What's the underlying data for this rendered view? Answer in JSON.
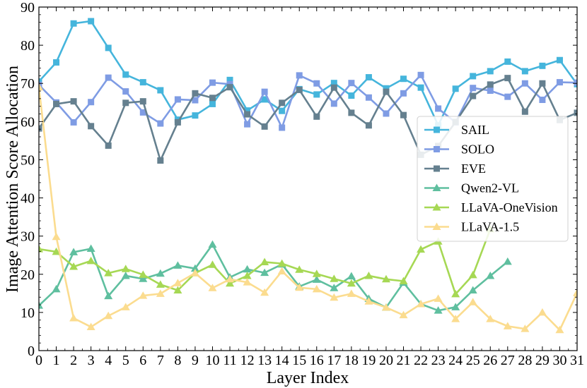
{
  "chart_data": {
    "type": "line",
    "xlabel": "Layer Index",
    "ylabel": "Image Attention Score Allocation",
    "xlim": [
      0,
      31
    ],
    "ylim": [
      0,
      90
    ],
    "xticks": [
      "0",
      "1",
      "2",
      "3",
      "4",
      "5",
      "6",
      "7",
      "8",
      "9",
      "10",
      "11",
      "12",
      "13",
      "14",
      "15",
      "16",
      "17",
      "18",
      "19",
      "20",
      "21",
      "22",
      "23",
      "24",
      "25",
      "26",
      "27",
      "28",
      "29",
      "30",
      "31"
    ],
    "yticks": [
      "0",
      "10",
      "20",
      "30",
      "40",
      "50",
      "60",
      "70",
      "80",
      "90"
    ],
    "legend_position": "center-right",
    "series": [
      {
        "name": "SAIL",
        "color": "#45b5dc",
        "marker": "square",
        "x": [
          0,
          1,
          2,
          3,
          4,
          5,
          6,
          7,
          8,
          9,
          10,
          11,
          12,
          13,
          14,
          15,
          16,
          17,
          18,
          19,
          20,
          21,
          22,
          23,
          24,
          25,
          26,
          27,
          28,
          29,
          30,
          31
        ],
        "y": [
          70.5,
          75.5,
          85.7,
          86.3,
          79.3,
          72.3,
          70.3,
          68.2,
          60.5,
          61.6,
          64.6,
          70.9,
          62.9,
          65.8,
          62.8,
          68.5,
          67.1,
          70.1,
          66.8,
          71.6,
          68.7,
          71.2,
          68.9,
          59.0,
          68.6,
          71.9,
          73.2,
          75.7,
          73.2,
          74.6,
          76.1,
          69.8
        ]
      },
      {
        "name": "SOLO",
        "color": "#7f9ce4",
        "marker": "square",
        "x": [
          0,
          1,
          2,
          3,
          4,
          5,
          6,
          7,
          8,
          9,
          10,
          11,
          12,
          13,
          14,
          15,
          16,
          17,
          18,
          19,
          20,
          21,
          22,
          23,
          24,
          25,
          26,
          27,
          28,
          29,
          30,
          31
        ],
        "y": [
          69.6,
          65.0,
          59.8,
          65.1,
          71.5,
          67.9,
          62.4,
          59.5,
          65.8,
          65.6,
          70.2,
          69.8,
          59.3,
          67.8,
          58.4,
          72.1,
          70.0,
          64.7,
          70.1,
          66.3,
          62.1,
          67.4,
          72.2,
          63.4,
          59.8,
          68.8,
          68.1,
          66.5,
          70.0,
          65.7,
          70.3,
          70.2
        ]
      },
      {
        "name": "EVE",
        "color": "#65808f",
        "marker": "square",
        "x": [
          0,
          1,
          2,
          3,
          4,
          5,
          6,
          7,
          8,
          9,
          10,
          11,
          12,
          13,
          14,
          15,
          16,
          17,
          18,
          19,
          20,
          21,
          22,
          23,
          24,
          25,
          26,
          27,
          28,
          29,
          30,
          31
        ],
        "y": [
          58.2,
          64.6,
          65.3,
          58.8,
          53.7,
          64.9,
          65.3,
          49.8,
          59.8,
          67.4,
          66.2,
          69.0,
          61.9,
          58.7,
          64.9,
          68.3,
          61.3,
          68.9,
          62.3,
          59.0,
          67.8,
          61.7,
          51.3,
          53.6,
          59.9,
          66.7,
          69.7,
          71.4,
          62.6,
          70.0,
          60.4,
          62.3
        ]
      },
      {
        "name": "Qwen2-VL",
        "color": "#5fbf9f",
        "marker": "triangle",
        "x": [
          0,
          1,
          2,
          3,
          4,
          5,
          6,
          7,
          8,
          9,
          10,
          11,
          12,
          13,
          14,
          15,
          16,
          17,
          18,
          19,
          20,
          21,
          22,
          23,
          24,
          25,
          26,
          27
        ],
        "y": [
          11.8,
          16.1,
          25.8,
          26.7,
          14.3,
          19.6,
          18.8,
          20.2,
          22.3,
          21.5,
          27.8,
          19.2,
          21.3,
          20.4,
          22.6,
          16.8,
          18.6,
          16.4,
          19.5,
          13.6,
          11.3,
          17.8,
          12.2,
          10.5,
          11.4,
          15.8,
          19.6,
          23.3
        ]
      },
      {
        "name": "LLaVA-OneVision",
        "color": "#a6d854",
        "marker": "triangle",
        "x": [
          0,
          1,
          2,
          3,
          4,
          5,
          6,
          7,
          8,
          9,
          10,
          11,
          12,
          13,
          14,
          15,
          16,
          17,
          18,
          19,
          20,
          21,
          22,
          23,
          24,
          25,
          26
        ],
        "y": [
          26.6,
          25.9,
          22.0,
          23.5,
          20.3,
          21.4,
          19.9,
          17.3,
          15.8,
          20.3,
          22.5,
          17.6,
          19.6,
          23.2,
          22.8,
          21.2,
          20.1,
          18.8,
          17.6,
          19.6,
          18.7,
          18.2,
          26.5,
          28.6,
          14.8,
          19.8,
          31.8
        ]
      },
      {
        "name": "LLaVA-1.5",
        "color": "#fbdc8f",
        "marker": "triangle",
        "x": [
          0,
          1,
          2,
          3,
          4,
          5,
          6,
          7,
          8,
          9,
          10,
          11,
          12,
          13,
          14,
          15,
          16,
          17,
          18,
          19,
          20,
          21,
          22,
          23,
          24,
          25,
          26,
          27,
          28,
          29,
          30,
          31
        ],
        "y": [
          69.0,
          29.8,
          8.5,
          6.2,
          9.1,
          11.4,
          14.4,
          14.9,
          17.7,
          20.3,
          16.4,
          18.7,
          17.9,
          15.2,
          20.8,
          16.5,
          16.1,
          13.9,
          14.9,
          12.9,
          11.3,
          9.3,
          12.2,
          13.6,
          8.3,
          12.7,
          8.3,
          6.4,
          5.7,
          10.0,
          5.4,
          15.1
        ]
      }
    ]
  }
}
